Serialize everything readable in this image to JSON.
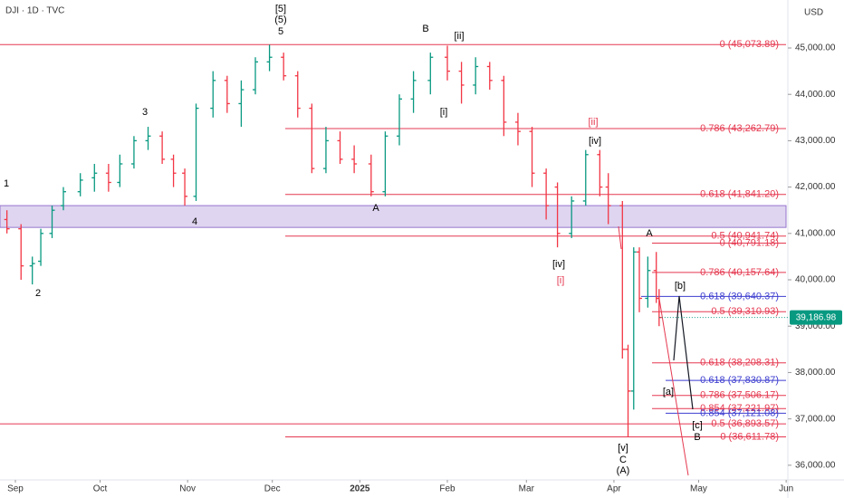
{
  "chart_data": {
    "type": "ohlc",
    "title": "DJI · 1D · TVC",
    "y_axis_label": "USD",
    "x": [
      -3,
      2,
      6,
      9,
      13,
      17,
      23,
      28,
      33,
      37,
      42,
      47,
      52,
      56,
      60,
      64,
      70,
      75,
      80,
      85,
      90,
      95,
      100,
      105,
      110,
      115,
      120,
      126,
      131,
      136,
      141,
      147,
      153,
      158,
      163,
      168,
      173,
      178,
      183,
      188,
      192,
      197,
      202,
      207,
      210,
      215,
      217,
      219,
      221,
      224,
      227,
      228
    ],
    "open": [
      41300,
      41100,
      40300,
      40400,
      41000,
      41600,
      41900,
      42200,
      42300,
      42100,
      42500,
      43000,
      43100,
      42600,
      42300,
      41800,
      43700,
      44300,
      43800,
      44100,
      44700,
      44800,
      44400,
      43700,
      42400,
      43000,
      42600,
      42500,
      41900,
      43100,
      43900,
      44300,
      44800,
      44500,
      44200,
      44600,
      44300,
      43400,
      43200,
      42300,
      42000,
      41000,
      41700,
      42700,
      42000,
      41600,
      38500,
      37600,
      40600,
      39600,
      40200,
      39600
    ],
    "high": [
      41500,
      41200,
      40500,
      41100,
      41600,
      42000,
      42300,
      42500,
      42500,
      42700,
      43100,
      43300,
      43200,
      42700,
      42400,
      43800,
      44500,
      44400,
      44300,
      44800,
      45070,
      44900,
      44500,
      43800,
      43300,
      43200,
      42900,
      42700,
      43200,
      44000,
      44500,
      44900,
      45050,
      44700,
      44800,
      44700,
      44400,
      43600,
      43300,
      42400,
      42100,
      41800,
      42800,
      42800,
      42300,
      41700,
      38600,
      40700,
      40700,
      40500,
      40600,
      39800
    ],
    "low": [
      41000,
      40000,
      39900,
      40300,
      40900,
      41500,
      41800,
      41900,
      41900,
      42000,
      42400,
      42800,
      42500,
      42000,
      41600,
      41700,
      43500,
      43600,
      43300,
      44000,
      44500,
      44300,
      43500,
      42300,
      42300,
      42500,
      42300,
      41800,
      41800,
      42900,
      43600,
      44000,
      44300,
      43800,
      44000,
      44100,
      43100,
      42900,
      42000,
      41300,
      40700,
      40900,
      41600,
      41800,
      41200,
      38300,
      36611,
      37200,
      39300,
      39400,
      39500,
      39000
    ],
    "close": [
      41100,
      40300,
      40350,
      41000,
      41500,
      41900,
      42150,
      42300,
      42100,
      42500,
      43000,
      43100,
      42600,
      42300,
      41800,
      43700,
      44300,
      43800,
      44100,
      44700,
      44800,
      44400,
      43700,
      42400,
      43000,
      42600,
      42500,
      41900,
      43100,
      43900,
      44300,
      44800,
      44500,
      44200,
      44600,
      44300,
      43400,
      43200,
      42300,
      41600,
      41000,
      41700,
      42700,
      42000,
      41600,
      38500,
      37600,
      40600,
      39600,
      40200,
      39600,
      39187
    ],
    "xlim": [
      -5.45,
      273.6
    ],
    "xticks": [
      {
        "value": 0,
        "label": "Sep"
      },
      {
        "value": 30,
        "label": "Oct"
      },
      {
        "value": 61,
        "label": "Nov"
      },
      {
        "value": 91,
        "label": "Dec"
      },
      {
        "value": 122,
        "label": "2025"
      },
      {
        "value": 153,
        "label": "Feb"
      },
      {
        "value": 181,
        "label": "Mar"
      },
      {
        "value": 212,
        "label": "Apr"
      },
      {
        "value": 242,
        "label": "May"
      },
      {
        "value": 273,
        "label": "Jun"
      }
    ],
    "ylim": [
      35684,
      46035
    ],
    "yticks": [
      {
        "value": 36000,
        "label": "36,000.00"
      },
      {
        "value": 37000,
        "label": "37,000.00"
      },
      {
        "value": 38000,
        "label": "38,000.00"
      },
      {
        "value": 39000,
        "label": "39,000.00"
      },
      {
        "value": 40000,
        "label": "40,000.00"
      },
      {
        "value": 41000,
        "label": "41,000.00"
      },
      {
        "value": 42000,
        "label": "42,000.00"
      },
      {
        "value": 43000,
        "label": "43,000.00"
      },
      {
        "value": 44000,
        "label": "44,000.00"
      },
      {
        "value": 45000,
        "label": "45,000.00"
      }
    ],
    "last_price": {
      "value": 39186.98,
      "label": "39,186.98"
    },
    "zone": [
      41130,
      41600
    ],
    "fib_levels": [
      {
        "value": 45073.89,
        "label": "0 (45,073.89)",
        "color": "#e53950"
      },
      {
        "value": 43262.79,
        "label": "0.786 (43,262.79)",
        "color": "#e53950"
      },
      {
        "value": 41841.2,
        "label": "0.618 (41,841.20)",
        "color": "#e53950"
      },
      {
        "value": 40941.74,
        "label": "0.5 (40,941.74)",
        "color": "#e53950"
      },
      {
        "value": 40791.18,
        "label": "0 (40,791.18)",
        "color": "#e53950"
      },
      {
        "value": 40157.64,
        "label": "0.786 (40,157.64)",
        "color": "#e53950"
      },
      {
        "value": 39640.37,
        "label": "0.618 (39,640.37)",
        "color": "#3f3fd0"
      },
      {
        "value": 39310.93,
        "label": "0.5 (39,310.93)",
        "color": "#e53950"
      },
      {
        "value": 38208.31,
        "label": "0.618 (38,208.31)",
        "color": "#e53950"
      },
      {
        "value": 37830.87,
        "label": "0.618 (37,830.87)",
        "color": "#3f3fd0"
      },
      {
        "value": 37506.17,
        "label": "0.786 (37,506.17)",
        "color": "#e53950"
      },
      {
        "value": 37221.97,
        "label": "0.854 (37,221.97)",
        "color": "#e53950"
      },
      {
        "value": 37121.08,
        "label": "0.854 (37,121.08)",
        "color": "#3f3fd0"
      },
      {
        "value": 36893.57,
        "label": "0.5 (36,893.57)",
        "color": "#e53950"
      },
      {
        "value": 36611.78,
        "label": "0 (36,611.78)",
        "color": "#e53950"
      }
    ],
    "wave_labels": [
      {
        "text": "1",
        "color": "#000000"
      },
      {
        "text": "2",
        "color": "#000000"
      },
      {
        "text": "3",
        "color": "#000000"
      },
      {
        "text": "4",
        "color": "#000000"
      },
      {
        "text": "5",
        "color": "#000000"
      },
      {
        "text": "(5)",
        "color": "#000000"
      },
      {
        "text": "[5]",
        "color": "#000000"
      },
      {
        "text": "B",
        "color": "#000000"
      },
      {
        "text": "[ii]",
        "color": "#000000"
      },
      {
        "text": "[i]",
        "color": "#000000"
      },
      {
        "text": "A",
        "color": "#000000"
      },
      {
        "text": "[iv]",
        "color": "#000000"
      },
      {
        "text": "[i]",
        "color": "#e53950"
      },
      {
        "text": "[iv]",
        "color": "#000000"
      },
      {
        "text": "[ii]",
        "color": "#e53950"
      },
      {
        "text": "A",
        "color": "#000000"
      },
      {
        "text": "[b]",
        "color": "#000000"
      },
      {
        "text": "[a]",
        "color": "#000000"
      },
      {
        "text": "[c]",
        "color": "#000000"
      },
      {
        "text": "B",
        "color": "#000000"
      },
      {
        "text": "[v]",
        "color": "#000000"
      },
      {
        "text": "C",
        "color": "#000000"
      },
      {
        "text": "(A)",
        "color": "#000000"
      }
    ],
    "up_color": "#089981",
    "down_color": "#f23645"
  }
}
